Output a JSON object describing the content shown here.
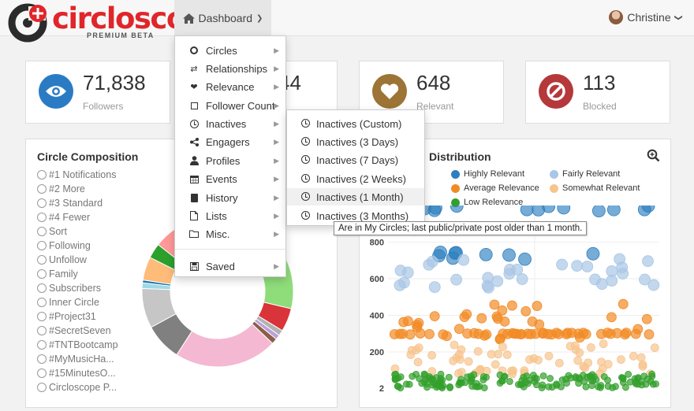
{
  "brand": {
    "name": "circloscope",
    "subtitle": "PREMIUM BETA",
    "colors": {
      "red": "#e0262a",
      "dark": "#2b2b2b"
    }
  },
  "nav": {
    "dashboard_label": "Dashboard",
    "user_name": "Christine"
  },
  "stats": [
    {
      "value": "71,838",
      "label": "Followers",
      "color": "#2a7bc4",
      "icon": "eye-icon"
    },
    {
      "value": "44",
      "label": "",
      "color": "#999999",
      "icon": "hidden-icon"
    },
    {
      "value": "648",
      "label": "Relevant",
      "color": "#9b7436",
      "icon": "heart-icon"
    },
    {
      "value": "113",
      "label": "Blocked",
      "color": "#b5383b",
      "icon": "ban-icon"
    }
  ],
  "composition": {
    "title": "Circle Composition",
    "items": [
      "#1 Notifications",
      "#2 More",
      "#3 Standard",
      "#4 Fewer",
      "Sort",
      "Following",
      "Unfollow",
      "Family",
      "Subscribers",
      "Inner Circle",
      "#Project31",
      "#SecretSeven",
      "#TNTBootcamp",
      "#MyMusicHa...",
      "#15MinutesO...",
      "Circloscope P..."
    ]
  },
  "distribution": {
    "title_visible": "Distribution",
    "legend": [
      {
        "label": "Highly Relevant",
        "color": "#2d7fbf"
      },
      {
        "label": "Fairly Relevant",
        "color": "#a9c6e6"
      },
      {
        "label": "Average Relevance",
        "color": "#f28a24"
      },
      {
        "label": "Somewhat Relevant",
        "color": "#f7c48e"
      },
      {
        "label": "Low Relevance",
        "color": "#33a02c"
      }
    ]
  },
  "chart_data": {
    "type": "scatter",
    "ytick_labels": [
      "800",
      "600",
      "400",
      "200",
      "2"
    ],
    "ylim": [
      2,
      1000
    ],
    "grid": true,
    "legend_placement": "top",
    "series": [
      {
        "name": "Highly Relevant",
        "color": "#2d7fbf",
        "y_range": [
          700,
          1000
        ]
      },
      {
        "name": "Fairly Relevant",
        "color": "#a9c6e6",
        "y_range": [
          550,
          720
        ]
      },
      {
        "name": "Average Relevance",
        "color": "#f28a24",
        "y_range": [
          250,
          470
        ]
      },
      {
        "name": "Somewhat Relevant",
        "color": "#f7c48e",
        "y_range": [
          80,
          250
        ]
      },
      {
        "name": "Low Relevance",
        "color": "#33a02c",
        "y_range": [
          2,
          80
        ]
      }
    ]
  },
  "menu": {
    "items": [
      {
        "label": "Circles",
        "icon": "circle-icon",
        "arrow": true
      },
      {
        "label": "Relationships",
        "icon": "exchange-icon",
        "arrow": true
      },
      {
        "label": "Relevance",
        "icon": "heart-icon",
        "arrow": true
      },
      {
        "label": "Follower Count",
        "icon": "square-icon",
        "arrow": true
      },
      {
        "label": "Inactives",
        "icon": "clock-icon",
        "arrow": true
      },
      {
        "label": "Engagers",
        "icon": "share-icon",
        "arrow": true
      },
      {
        "label": "Profiles",
        "icon": "user-icon",
        "arrow": true
      },
      {
        "label": "Events",
        "icon": "calendar-icon",
        "arrow": true
      },
      {
        "label": "History",
        "icon": "book-icon",
        "arrow": true
      },
      {
        "label": "Lists",
        "icon": "file-icon",
        "arrow": true
      },
      {
        "label": "Misc.",
        "icon": "folder-icon",
        "arrow": true
      }
    ],
    "saved": {
      "label": "Saved",
      "icon": "save-icon",
      "arrow": true
    }
  },
  "submenu": {
    "items": [
      "Inactives (Custom)",
      "Inactives (3 Days)",
      "Inactives (7 Days)",
      "Inactives (2 Weeks)",
      "Inactives (1 Month)",
      "Inactives (3 Months)"
    ],
    "tooltip": "Are in My Circles; last public/private post older than 1 month."
  }
}
